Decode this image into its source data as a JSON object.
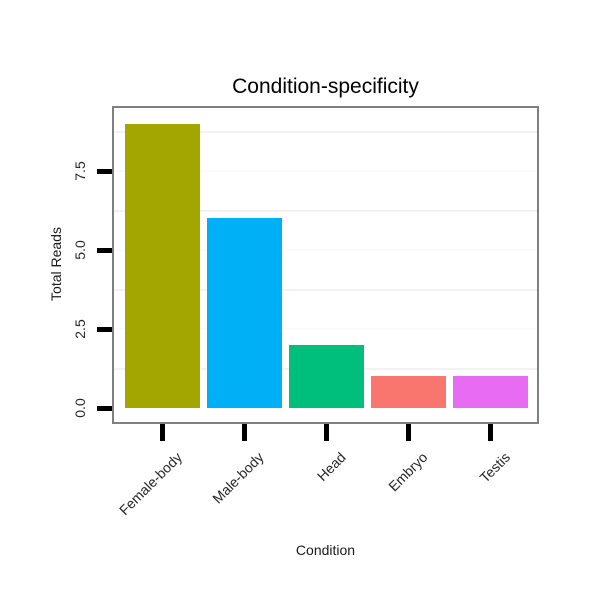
{
  "chart_data": {
    "type": "bar",
    "title": "Condition-specificity",
    "xlabel": "Condition",
    "ylabel": "Total Reads",
    "categories": [
      "Female-body",
      "Male-body",
      "Head",
      "Embryo",
      "Testis"
    ],
    "values": [
      9,
      6,
      2,
      1,
      1
    ],
    "bar_colors": [
      "#A3A500",
      "#00B0F6",
      "#00BF7D",
      "#F8766D",
      "#E76BF3"
    ],
    "y_tick_labels": [
      "0.0",
      "2.5",
      "5.0",
      "7.5"
    ],
    "y_tick_values": [
      0,
      2.5,
      5.0,
      7.5
    ],
    "ylim": [
      -0.45,
      9.45
    ],
    "major_gridline_values": [
      2.5,
      5.0,
      7.5
    ],
    "minor_gridline_values": [
      1.25,
      3.75,
      6.25,
      8.75
    ],
    "grid": "faint minor gridlines on white panel",
    "legend_position": "none",
    "colors": {
      "background": "#FFFFFF",
      "panel_border": "#7F7F7F",
      "axis_tick": "#000000",
      "text": "#1A1A1A",
      "minor_grid": "#F2F2F2",
      "major_grid": "#FAFAFA"
    }
  }
}
